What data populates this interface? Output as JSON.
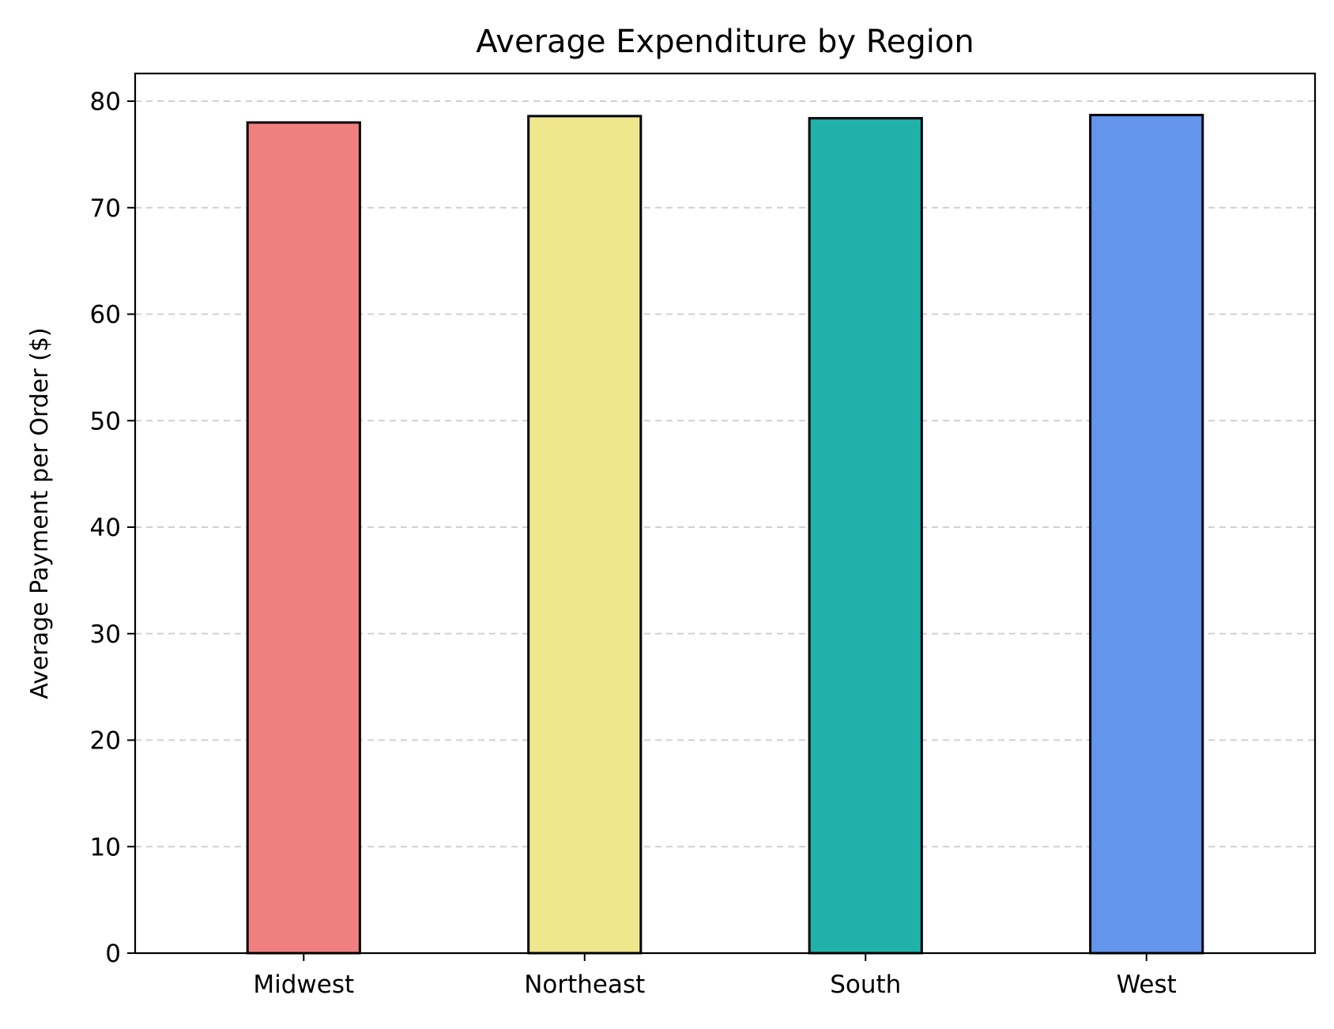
{
  "chart_data": {
    "type": "bar",
    "title": "Average Expenditure by Region",
    "xlabel": "",
    "ylabel": "Average Payment per Order ($)",
    "categories": [
      "Midwest",
      "Northeast",
      "South",
      "West"
    ],
    "values": [
      78.0,
      78.6,
      78.4,
      78.7
    ],
    "colors": [
      "#f08080",
      "#f0e68c",
      "#20b2aa",
      "#6495ed"
    ],
    "edge_color": "#000000",
    "ylim": [
      0,
      82.6
    ],
    "yticks": [
      0,
      10,
      20,
      30,
      40,
      50,
      60,
      70,
      80
    ],
    "grid": "y-dashed",
    "legend": "none"
  }
}
